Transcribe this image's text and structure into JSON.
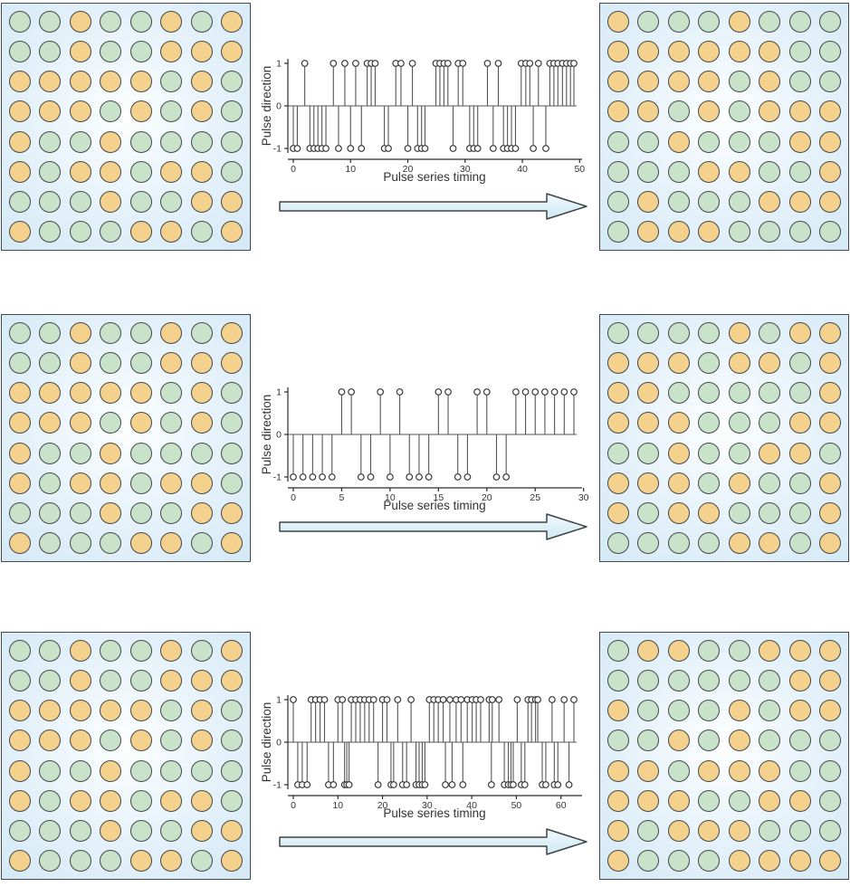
{
  "palette": {
    "site_green": "#c9e3cb",
    "site_orange": "#f4d18c",
    "site_stroke": "#43484a",
    "panel_border": "#43484a",
    "panel_bg_inner": "#fdffff",
    "panel_bg_outer": "#d4e9f6",
    "stem_color": "#555555",
    "marker_stroke": "#3a3a3a",
    "axis_color": "#2b2b2b",
    "text_color": "#333333",
    "arrow_fill_top": "#f0f9fc",
    "arrow_fill_bottom": "#cee8f2",
    "arrow_stroke": "#3f4345"
  },
  "cell_encoding": {
    "G": "green site",
    "O": "orange site"
  },
  "chart_data": [
    {
      "type": "stem",
      "xlabel": "Pulse series timing",
      "ylabel": "Pulse direction",
      "xticks": [
        0,
        10,
        20,
        30,
        40,
        50
      ],
      "yticks": [
        1,
        0,
        -1
      ],
      "xlim": [
        0,
        50
      ],
      "ylim": [
        -1,
        1
      ],
      "x": [
        0,
        0.7,
        2,
        2.9,
        3.6,
        4.3,
        5,
        5.7,
        7,
        7.9,
        9,
        10,
        10.9,
        11.9,
        12.9,
        13.6,
        14.3,
        15.9,
        16.6,
        17.9,
        18.8,
        20,
        20.8,
        21.7,
        22.4,
        23,
        24.9,
        25.6,
        26.3,
        27,
        27.9,
        28.8,
        29.6,
        30.8,
        31.5,
        32.2,
        33.9,
        34.9,
        35.8,
        36.7,
        37.4,
        38.1,
        38.8,
        39.8,
        40.6,
        41.3,
        41.9,
        42.8,
        44.1,
        44.8,
        45.5,
        46.2,
        47,
        47.7,
        48.4,
        49
      ],
      "values": [
        -1,
        -1,
        1,
        -1,
        -1,
        -1,
        -1,
        -1,
        1,
        -1,
        1,
        -1,
        1,
        -1,
        1,
        1,
        1,
        -1,
        -1,
        1,
        1,
        -1,
        1,
        -1,
        -1,
        -1,
        1,
        1,
        1,
        1,
        -1,
        1,
        1,
        -1,
        -1,
        -1,
        1,
        -1,
        1,
        -1,
        -1,
        -1,
        -1,
        1,
        1,
        1,
        -1,
        1,
        -1,
        1,
        1,
        1,
        1,
        1,
        1,
        1
      ]
    },
    {
      "type": "stem",
      "xlabel": "Pulse series timing",
      "ylabel": "Pulse direction",
      "xticks": [
        0,
        5,
        10,
        15,
        20,
        25,
        30
      ],
      "yticks": [
        1,
        0,
        -1
      ],
      "xlim": [
        0,
        30
      ],
      "ylim": [
        -1,
        1
      ],
      "x": [
        0,
        1,
        2,
        3,
        4,
        5,
        6,
        7,
        8,
        9,
        10,
        11,
        12,
        13,
        14,
        15,
        16,
        17,
        18,
        19,
        20,
        21,
        22,
        23,
        24,
        25,
        26,
        27,
        28,
        29
      ],
      "values": [
        -1,
        -1,
        -1,
        -1,
        -1,
        1,
        1,
        -1,
        -1,
        1,
        -1,
        1,
        -1,
        -1,
        -1,
        1,
        1,
        -1,
        -1,
        1,
        1,
        -1,
        -1,
        1,
        1,
        1,
        1,
        1,
        1,
        1
      ]
    },
    {
      "type": "stem",
      "xlabel": "Pulse series timing",
      "ylabel": "Pulse direction",
      "xticks": [
        0,
        10,
        20,
        30,
        40,
        50,
        60
      ],
      "yticks": [
        1,
        0,
        -1
      ],
      "xlim": [
        0,
        63
      ],
      "ylim": [
        -1,
        1
      ],
      "x": [
        0,
        1,
        2,
        3.1,
        4,
        5,
        6,
        7,
        7.9,
        9,
        10,
        11,
        11.5,
        12,
        12.5,
        13,
        14,
        15,
        16,
        17,
        18,
        19,
        20,
        21,
        21.9,
        22.5,
        23.4,
        24.5,
        25.4,
        26.4,
        27.5,
        28.2,
        28.9,
        29.5,
        30.5,
        31.5,
        32.5,
        33.6,
        34.1,
        35.1,
        35.6,
        36.5,
        37.6,
        38,
        39,
        40.1,
        41,
        42,
        43.9,
        44.4,
        44.6,
        46.1,
        47.3,
        48.2,
        48.8,
        49.3,
        50.2,
        51.1,
        51.9,
        52.6,
        53.4,
        54.3,
        54.8,
        55.8,
        56.6,
        58,
        58.5,
        59.3,
        60.7,
        61.8,
        62.9
      ],
      "values": [
        1,
        -1,
        -1,
        -1,
        1,
        1,
        1,
        1,
        -1,
        -1,
        1,
        1,
        -1,
        -1,
        -1,
        1,
        1,
        1,
        1,
        1,
        1,
        -1,
        1,
        1,
        -1,
        -1,
        1,
        -1,
        -1,
        1,
        -1,
        -1,
        -1,
        -1,
        1,
        1,
        1,
        1,
        -1,
        1,
        -1,
        1,
        1,
        -1,
        1,
        1,
        1,
        1,
        1,
        -1,
        1,
        1,
        -1,
        -1,
        -1,
        -1,
        1,
        -1,
        -1,
        1,
        1,
        1,
        1,
        -1,
        -1,
        1,
        -1,
        -1,
        1,
        -1,
        1
      ]
    }
  ],
  "rows": [
    {
      "left_grid": {
        "pattern": [
          "GGOGGOGO",
          "GGOGGOOO",
          "OOOOOGOG",
          "OOOGOGOG",
          "OGGOGGGG",
          "OGOOGOOG",
          "GGGOGGOO",
          "OGGGOOGO"
        ]
      },
      "right_grid": {
        "pattern": [
          "OGGGOGGG",
          "OOOOOOGG",
          "OOOOGOGG",
          "OOGOGOOO",
          "GGOGGGOO",
          "GGGOOGGO",
          "GOGGGOOO",
          "GOOOGGGG"
        ]
      }
    },
    {
      "left_grid": {
        "pattern": [
          "GGOGGOGO",
          "GGOGGOOO",
          "OOOOOGOG",
          "OOOGOGOG",
          "OGGOGGGG",
          "OGOOGOOG",
          "GGGOGGOO",
          "OGGGOOGO"
        ]
      },
      "right_grid": {
        "pattern": [
          "GGGGOGOO",
          "OOOGOOGO",
          "OOGGGGGO",
          "OOOGGGOO",
          "GGOGGOOG",
          "OOOGOGGO",
          "OGOOGGGO",
          "GGGGOOGO"
        ]
      }
    },
    {
      "left_grid": {
        "pattern": [
          "GGOGGOGO",
          "GGOGGOOO",
          "OOOOOGOG",
          "OOOGOGOG",
          "OGGOGGGG",
          "OGOOGOOG",
          "GGGOGGOO",
          "OGGGOOGO"
        ]
      },
      "right_grid": {
        "pattern": [
          "GOOGGOOO",
          "GGGGGGOO",
          "OGGGOGOO",
          "GGOGOGGG",
          "OOGOOOGG",
          "OOOGGOOG",
          "OGOOOGGG",
          "OGGGOOOO"
        ]
      }
    }
  ]
}
